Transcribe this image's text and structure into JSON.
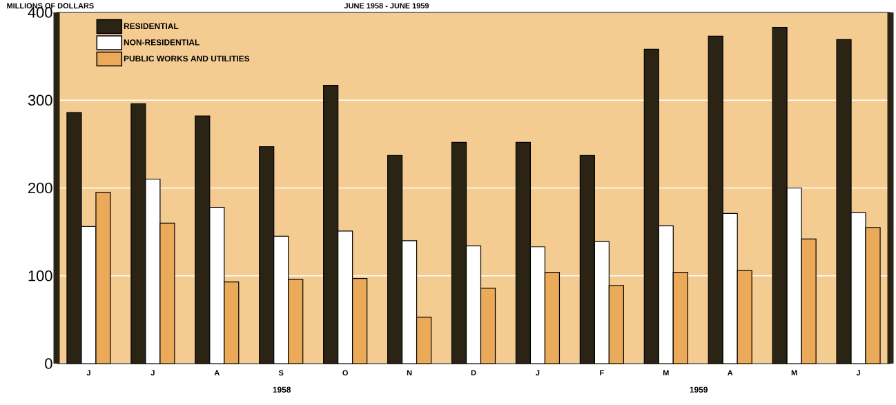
{
  "chart_data": {
    "type": "bar",
    "subtitle": "JUNE 1958 - JUNE 1959",
    "ylabel": "MILLIONS OF DOLLARS",
    "categories": [
      "J",
      "J",
      "A",
      "S",
      "O",
      "N",
      "D",
      "J",
      "F",
      "M",
      "A",
      "M",
      "J"
    ],
    "series": [
      {
        "name": "RESIDENTIAL",
        "color": "#2b2415",
        "values": [
          286,
          296,
          282,
          247,
          317,
          237,
          252,
          252,
          237,
          358,
          373,
          383,
          369
        ]
      },
      {
        "name": "NON-RESIDENTIAL",
        "color": "#ffffff",
        "values": [
          156,
          210,
          178,
          145,
          151,
          140,
          134,
          133,
          139,
          157,
          171,
          200,
          172
        ]
      },
      {
        "name": "PUBLIC WORKS AND UTILITIES",
        "color": "#eba95a",
        "values": [
          195,
          160,
          93,
          96,
          97,
          53,
          86,
          104,
          89,
          104,
          106,
          142,
          155
        ]
      }
    ],
    "ylim": [
      0,
      400
    ],
    "yticks": [
      0,
      100,
      200,
      300,
      400
    ],
    "grid": "y",
    "legend": "top left",
    "annotations": [
      "1958",
      "1959"
    ]
  }
}
